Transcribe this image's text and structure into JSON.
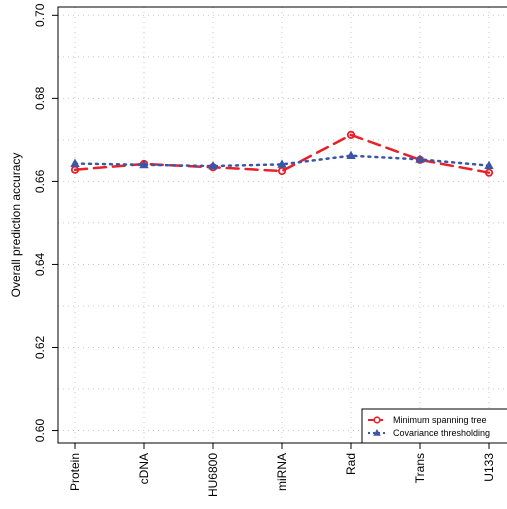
{
  "chart_data": {
    "type": "line",
    "title": "",
    "xlabel": "",
    "ylabel": "Overall prediction accuracy",
    "categories": [
      "Protein",
      "cDNA",
      "HU6800",
      "miRNA",
      "Rad",
      "Trans",
      "U133"
    ],
    "ylim": [
      0.597,
      0.702
    ],
    "yticks": [
      0.6,
      0.62,
      0.64,
      0.66,
      0.68,
      0.7
    ],
    "ytick_labels": [
      "0.60",
      "0.62",
      "0.64",
      "0.66",
      "0.68",
      "0.70"
    ],
    "grid": true,
    "legend_position": "bottom-right",
    "series": [
      {
        "name": "Minimum spanning tree",
        "values": [
          0.6628,
          0.6642,
          0.6634,
          0.6625,
          0.6712,
          0.6652,
          0.6621
        ],
        "color": "#e8202a",
        "line_style": "dashed",
        "marker": "circle"
      },
      {
        "name": "Covariance thresholding",
        "values": [
          0.6643,
          0.664,
          0.6637,
          0.6641,
          0.6662,
          0.6653,
          0.6638
        ],
        "color": "#3a56a8",
        "line_style": "dotted",
        "marker": "triangle"
      }
    ]
  }
}
